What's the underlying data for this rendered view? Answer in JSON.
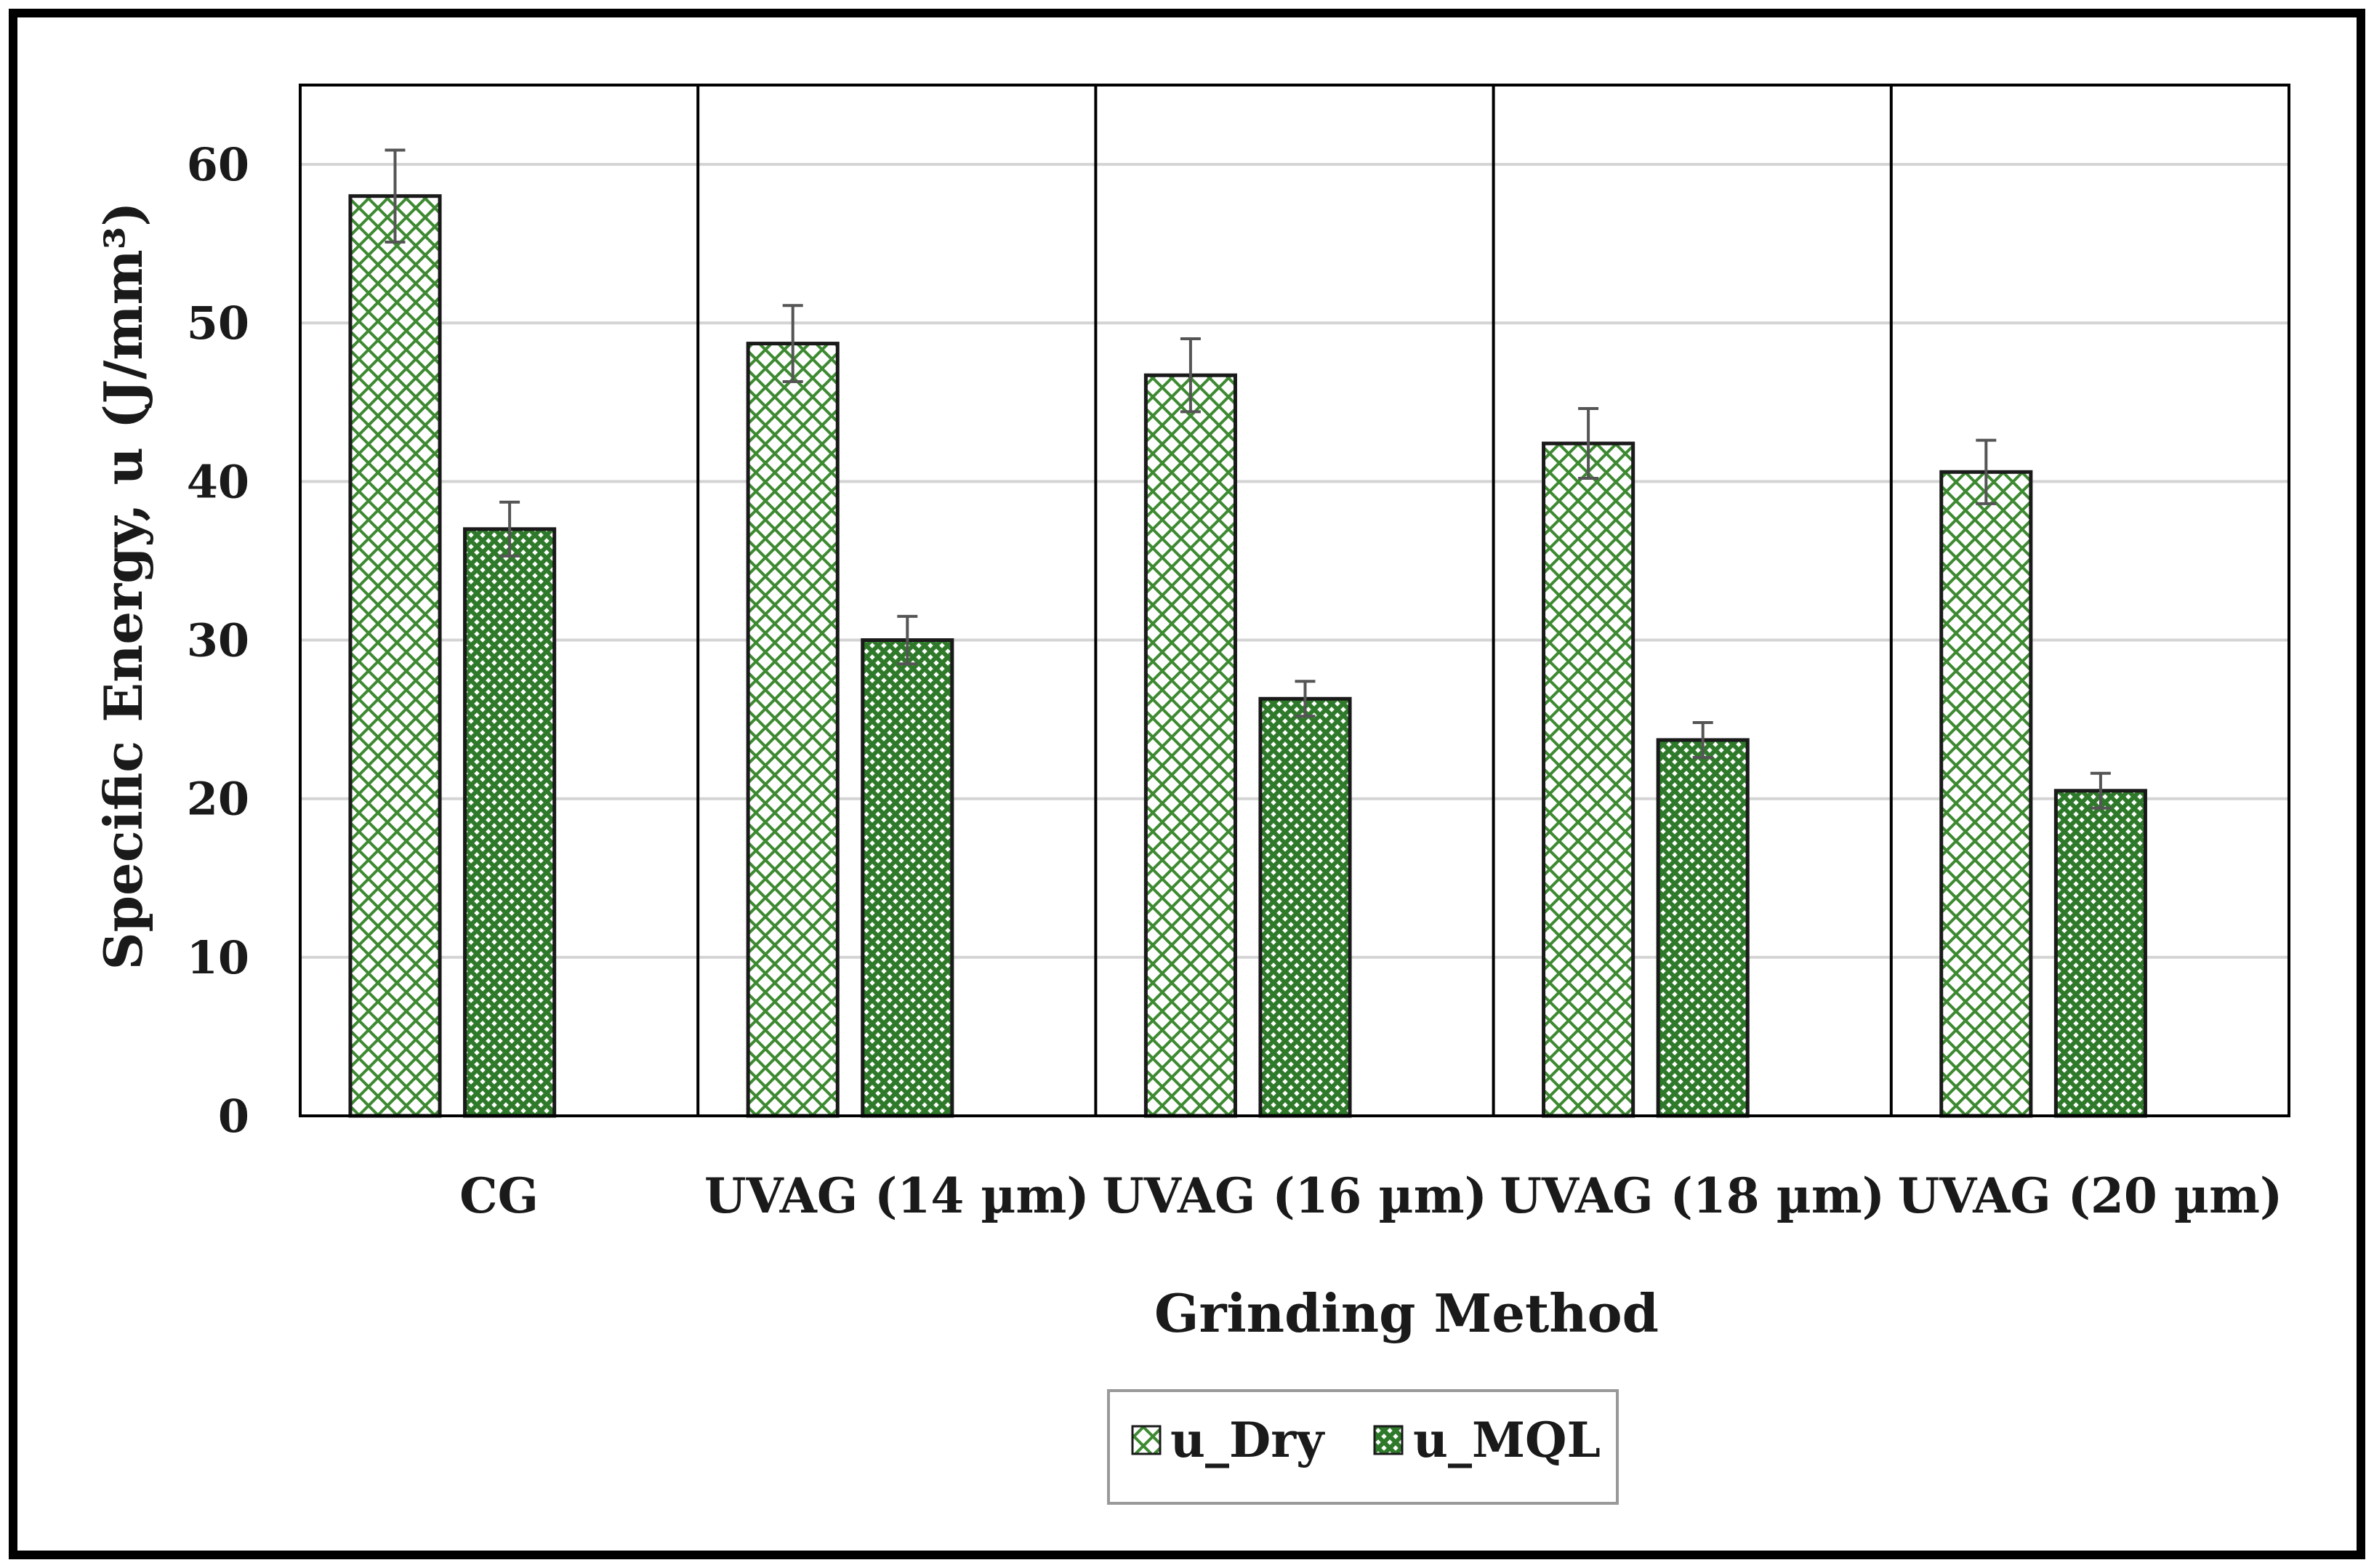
{
  "chart_data": {
    "type": "bar",
    "title": "",
    "xlabel": "Grinding Method",
    "ylabel": "Specific Energy, u (J/mm³)",
    "ylim": [
      0,
      65
    ],
    "yticks": [
      0,
      10,
      20,
      30,
      40,
      50,
      60
    ],
    "grid": true,
    "legend_position": "bottom-center",
    "categories": [
      "CG",
      "UVAG (14 µm)",
      "UVAG (16 µm)",
      "UVAG (18 µm)",
      "UVAG (20 µm)"
    ],
    "series": [
      {
        "name": "u_Dry",
        "values": [
          58,
          48.7,
          46.7,
          42.4,
          40.6
        ],
        "errors": [
          2.9,
          2.4,
          2.3,
          2.2,
          2.0
        ],
        "pattern": "crosshatch"
      },
      {
        "name": "u_MQL",
        "values": [
          37,
          30,
          26.3,
          23.7,
          20.5
        ],
        "errors": [
          1.7,
          1.5,
          1.1,
          1.1,
          1.1
        ],
        "pattern": "checker"
      }
    ],
    "colors": {
      "bar_stroke": "#1a1a1a",
      "pattern_green": "#3e8a32",
      "grid": "#d4d4d4",
      "error_bar": "#555555",
      "frame": "#000000"
    }
  }
}
